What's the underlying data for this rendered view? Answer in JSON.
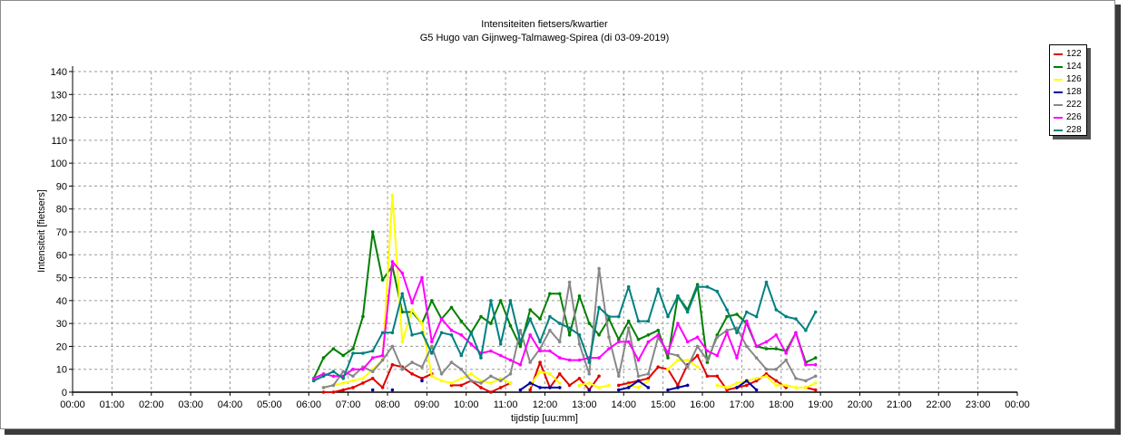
{
  "chart_data": {
    "type": "line",
    "title": "Intensiteiten fietsers/kwartier",
    "subtitle": "G5 Hugo van Gijnweg-Talmaweg-Spirea (di 03-09-2019)",
    "xlabel": "tijdstip [uu:mm]",
    "ylabel": "Intensiteit [fietsers]",
    "xlim": [
      "00:00",
      "24:00"
    ],
    "ylim": [
      0,
      140
    ],
    "yticks": [
      0,
      10,
      20,
      30,
      40,
      50,
      60,
      70,
      80,
      90,
      100,
      110,
      120,
      130,
      140
    ],
    "xticks": [
      "00:00",
      "01:00",
      "02:00",
      "03:00",
      "04:00",
      "05:00",
      "06:00",
      "07:00",
      "08:00",
      "09:00",
      "10:00",
      "11:00",
      "12:00",
      "13:00",
      "14:00",
      "15:00",
      "16:00",
      "17:00",
      "18:00",
      "19:00",
      "20:00",
      "21:00",
      "22:00",
      "23:00",
      "00:00"
    ],
    "grid": true,
    "legend_position": "right",
    "x": [
      "06:00",
      "06:15",
      "06:30",
      "06:45",
      "07:00",
      "07:15",
      "07:30",
      "07:45",
      "08:00",
      "08:15",
      "08:30",
      "08:45",
      "09:00",
      "09:15",
      "09:30",
      "09:45",
      "10:00",
      "10:15",
      "10:30",
      "10:45",
      "11:00",
      "11:15",
      "11:30",
      "11:45",
      "12:00",
      "12:15",
      "12:30",
      "12:45",
      "13:00",
      "13:15",
      "13:30",
      "13:45",
      "14:00",
      "14:15",
      "14:30",
      "14:45",
      "15:00",
      "15:15",
      "15:30",
      "15:45",
      "16:00",
      "16:15",
      "16:30",
      "16:45",
      "17:00",
      "17:15",
      "17:30",
      "17:45",
      "18:00",
      "18:15",
      "18:30",
      "18:45"
    ],
    "series": [
      {
        "name": "122",
        "color": "#e00000",
        "values": [
          null,
          0,
          0,
          1,
          2,
          4,
          6,
          2,
          12,
          11,
          8,
          6,
          8,
          null,
          3,
          3,
          5,
          2,
          0,
          2,
          4,
          null,
          1,
          13,
          2,
          8,
          3,
          6,
          1,
          7,
          null,
          3,
          4,
          5,
          6,
          11,
          10,
          3,
          12,
          16,
          7,
          7,
          1,
          2,
          3,
          5,
          8,
          5,
          2,
          null,
          2,
          1
        ]
      },
      {
        "name": "124",
        "color": "#008000",
        "values": [
          6,
          15,
          19,
          16,
          19,
          33,
          70,
          49,
          55,
          35,
          35,
          30,
          40,
          32,
          37,
          31,
          26,
          33,
          30,
          40,
          29,
          20,
          36,
          32,
          43,
          43,
          25,
          42,
          30,
          25,
          32,
          23,
          31,
          23,
          25,
          27,
          15,
          42,
          36,
          47,
          13,
          25,
          33,
          34,
          30,
          20,
          19,
          19,
          18,
          26,
          13,
          15
        ]
      },
      {
        "name": "126",
        "color": "#ffff00",
        "values": [
          null,
          2,
          3,
          4,
          5,
          6,
          10,
          14,
          86,
          22,
          36,
          30,
          7,
          5,
          4,
          6,
          8,
          5,
          4,
          6,
          4,
          null,
          3,
          9,
          8,
          4,
          null,
          3,
          4,
          2,
          3,
          null,
          3,
          2,
          5,
          null,
          10,
          14,
          14,
          11,
          null,
          3,
          2,
          4,
          5,
          6,
          7,
          3,
          3,
          2,
          2,
          4
        ]
      },
      {
        "name": "128",
        "color": "#0000a0",
        "values": [
          null,
          null,
          null,
          null,
          null,
          null,
          1,
          null,
          1,
          null,
          null,
          5,
          null,
          null,
          null,
          null,
          null,
          null,
          null,
          null,
          null,
          1,
          4,
          2,
          2,
          2,
          null,
          null,
          1,
          null,
          null,
          1,
          2,
          5,
          2,
          null,
          1,
          2,
          3,
          null,
          null,
          null,
          null,
          2,
          5,
          1,
          null,
          null,
          null,
          null,
          null,
          null
        ]
      },
      {
        "name": "222",
        "color": "#888888",
        "values": [
          null,
          2,
          3,
          9,
          7,
          11,
          9,
          14,
          20,
          10,
          13,
          11,
          20,
          8,
          13,
          10,
          5,
          4,
          7,
          5,
          8,
          27,
          13,
          19,
          27,
          22,
          48,
          21,
          8,
          54,
          24,
          7,
          28,
          7,
          8,
          24,
          17,
          16,
          11,
          20,
          14,
          24,
          27,
          28,
          20,
          15,
          10,
          10,
          14,
          6,
          5,
          7
        ]
      },
      {
        "name": "226",
        "color": "#ff00ff",
        "values": [
          6,
          8,
          7,
          7,
          10,
          10,
          15,
          16,
          57,
          52,
          39,
          50,
          22,
          32,
          27,
          25,
          21,
          17,
          18,
          16,
          14,
          12,
          25,
          18,
          18,
          15,
          14,
          14,
          15,
          15,
          19,
          22,
          22,
          14,
          22,
          25,
          17,
          30,
          22,
          24,
          18,
          16,
          26,
          15,
          31,
          20,
          22,
          25,
          17,
          26,
          12,
          12
        ]
      },
      {
        "name": "228",
        "color": "#008080",
        "values": [
          5,
          7,
          9,
          6,
          17,
          17,
          18,
          26,
          26,
          43,
          25,
          26,
          17,
          26,
          25,
          16,
          26,
          15,
          40,
          21,
          40,
          22,
          32,
          22,
          33,
          30,
          28,
          25,
          13,
          37,
          33,
          33,
          46,
          31,
          31,
          45,
          33,
          42,
          35,
          46,
          46,
          44,
          36,
          26,
          35,
          33,
          48,
          36,
          33,
          32,
          27,
          35
        ]
      }
    ]
  }
}
